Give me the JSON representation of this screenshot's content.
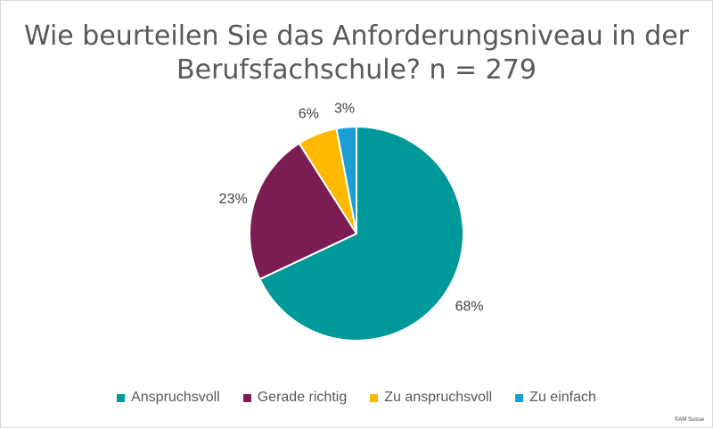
{
  "chart_data": {
    "type": "pie",
    "title_lines": [
      "Wie beurteilen Sie das Anforderungsniveau in der",
      "Berufsfachschule? n = 279"
    ],
    "categories": [
      "Anspruchsvoll",
      "Gerade richtig",
      "Zu anspruchsvoll",
      "Zu einfach"
    ],
    "values": [
      68,
      23,
      6,
      3
    ],
    "labels": [
      "68%",
      "23%",
      "6%",
      "3%"
    ],
    "colors": [
      "#009999",
      "#7b1c52",
      "#ffba00",
      "#1a9ed6"
    ],
    "legend_position": "bottom"
  },
  "credit": "©AM Suisse"
}
